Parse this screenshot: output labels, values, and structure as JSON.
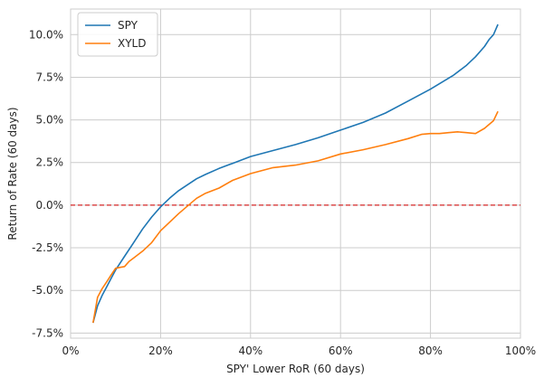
{
  "chart_data": {
    "type": "line",
    "title": "",
    "xlabel": "SPY' Lower RoR (60 days)",
    "ylabel": "Return of Rate (60 days)",
    "xlim": [
      0,
      1
    ],
    "ylim": [
      -7.8,
      11.5
    ],
    "xticks": [
      0,
      0.2,
      0.4,
      0.6,
      0.8,
      1.0
    ],
    "xtick_labels": [
      "0%",
      "20%",
      "40%",
      "60%",
      "80%",
      "100%"
    ],
    "yticks": [
      -7.5,
      -5.0,
      -2.5,
      0.0,
      2.5,
      5.0,
      7.5,
      10.0
    ],
    "ytick_labels": [
      "-7.5%",
      "-5.0%",
      "-2.5%",
      "0.0%",
      "2.5%",
      "5.0%",
      "7.5%",
      "10.0%"
    ],
    "grid": true,
    "legend_position": "top-left",
    "reference_line": {
      "y": 0.0,
      "color": "#d62728",
      "style": "dashed"
    },
    "series": [
      {
        "name": "SPY",
        "color": "#1f77b4",
        "x": [
          0.05,
          0.06,
          0.07,
          0.08,
          0.09,
          0.1,
          0.12,
          0.14,
          0.16,
          0.18,
          0.2,
          0.22,
          0.24,
          0.26,
          0.28,
          0.3,
          0.33,
          0.36,
          0.4,
          0.45,
          0.5,
          0.55,
          0.6,
          0.65,
          0.7,
          0.75,
          0.8,
          0.85,
          0.88,
          0.9,
          0.92,
          0.93,
          0.94,
          0.945,
          0.95
        ],
        "values": [
          -6.9,
          -5.9,
          -5.3,
          -4.8,
          -4.3,
          -3.8,
          -3.0,
          -2.2,
          -1.4,
          -0.7,
          -0.1,
          0.4,
          0.85,
          1.2,
          1.55,
          1.8,
          2.15,
          2.45,
          2.85,
          3.2,
          3.55,
          3.95,
          4.4,
          4.85,
          5.4,
          6.1,
          6.8,
          7.6,
          8.2,
          8.7,
          9.3,
          9.7,
          10.0,
          10.3,
          10.6
        ]
      },
      {
        "name": "XYLD",
        "color": "#ff7f0e",
        "x": [
          0.05,
          0.06,
          0.07,
          0.08,
          0.09,
          0.1,
          0.11,
          0.12,
          0.13,
          0.14,
          0.16,
          0.18,
          0.2,
          0.22,
          0.24,
          0.26,
          0.28,
          0.3,
          0.33,
          0.36,
          0.4,
          0.45,
          0.5,
          0.55,
          0.6,
          0.65,
          0.7,
          0.75,
          0.78,
          0.8,
          0.82,
          0.84,
          0.86,
          0.88,
          0.9,
          0.92,
          0.94,
          0.95
        ],
        "values": [
          -6.9,
          -5.4,
          -4.9,
          -4.5,
          -4.1,
          -3.7,
          -3.65,
          -3.6,
          -3.3,
          -3.1,
          -2.7,
          -2.2,
          -1.5,
          -1.0,
          -0.5,
          -0.05,
          0.4,
          0.7,
          1.0,
          1.45,
          1.85,
          2.2,
          2.35,
          2.6,
          3.0,
          3.25,
          3.55,
          3.9,
          4.15,
          4.2,
          4.2,
          4.25,
          4.3,
          4.25,
          4.2,
          4.5,
          4.95,
          5.5
        ]
      }
    ]
  }
}
